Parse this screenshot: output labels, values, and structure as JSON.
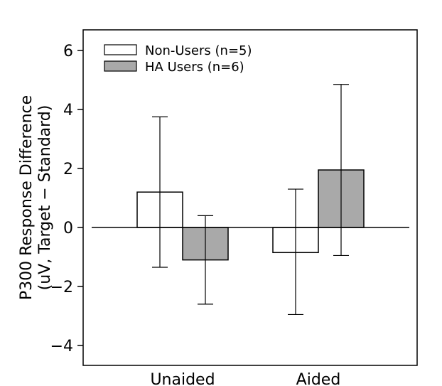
{
  "chart_data": {
    "type": "bar",
    "ylabel_line1": "P300 Response Difference",
    "ylabel_line2": "(uV, Target − Standard)",
    "xlabel": "",
    "ylim": [
      -5,
      6.5
    ],
    "yticks": [
      "6",
      "4",
      "2",
      "0",
      "−2",
      "−4"
    ],
    "ytick_values": [
      6,
      4,
      2,
      0,
      -2,
      -4
    ],
    "categories": [
      "Unaided",
      "Aided"
    ],
    "legend_position": "top-left",
    "grid": false,
    "series": [
      {
        "name": "Non-Users (n=5)",
        "color": "#ffffff",
        "values": [
          1.2,
          -0.85
        ],
        "error_low": [
          -1.35,
          -2.95
        ],
        "error_high": [
          3.75,
          1.3
        ]
      },
      {
        "name": "HA Users (n=6)",
        "color": "#a9a9a9",
        "values": [
          -1.1,
          1.95
        ],
        "error_low": [
          -2.6,
          -0.95
        ],
        "error_high": [
          0.4,
          4.85
        ]
      }
    ]
  }
}
